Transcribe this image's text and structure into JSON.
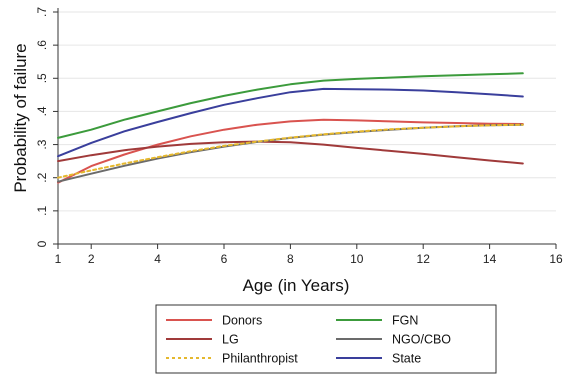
{
  "chart_data": {
    "type": "line",
    "title": "",
    "xlabel": "Age (in Years)",
    "ylabel": "Probability of failure",
    "xlim": [
      1,
      16
    ],
    "ylim": [
      0,
      0.7
    ],
    "xticks": [
      1,
      2,
      4,
      6,
      8,
      10,
      12,
      14,
      16
    ],
    "yticks": [
      0,
      0.1,
      0.2,
      0.3,
      0.4,
      0.5,
      0.6,
      0.7
    ],
    "ytick_labels": [
      "0",
      ".1",
      ".2",
      ".3",
      ".4",
      ".5",
      ".6",
      ".7"
    ],
    "grid": "horizontal",
    "legend_position": "bottom",
    "series": [
      {
        "name": "Donors",
        "color": "#d9534f",
        "dash": "solid",
        "x": [
          1,
          2,
          3,
          4,
          5,
          6,
          7,
          8,
          9,
          10,
          11,
          12,
          13,
          14,
          15
        ],
        "y": [
          0.185,
          0.235,
          0.27,
          0.3,
          0.325,
          0.345,
          0.36,
          0.37,
          0.375,
          0.373,
          0.37,
          0.367,
          0.365,
          0.363,
          0.362
        ]
      },
      {
        "name": "FGN",
        "color": "#3c9b3c",
        "dash": "solid",
        "x": [
          1,
          2,
          3,
          4,
          5,
          6,
          7,
          8,
          9,
          10,
          11,
          12,
          13,
          14,
          15
        ],
        "y": [
          0.32,
          0.345,
          0.375,
          0.4,
          0.425,
          0.447,
          0.466,
          0.482,
          0.493,
          0.498,
          0.502,
          0.506,
          0.509,
          0.512,
          0.515
        ]
      },
      {
        "name": "LG",
        "color": "#a03a3a",
        "dash": "solid",
        "x": [
          1,
          2,
          3,
          4,
          5,
          6,
          7,
          8,
          9,
          10,
          11,
          12,
          13,
          14,
          15
        ],
        "y": [
          0.25,
          0.268,
          0.283,
          0.294,
          0.302,
          0.307,
          0.309,
          0.307,
          0.3,
          0.29,
          0.281,
          0.272,
          0.262,
          0.252,
          0.243
        ]
      },
      {
        "name": "NGO/CBO",
        "color": "#6b6b6b",
        "dash": "solid",
        "x": [
          1,
          2,
          3,
          4,
          5,
          6,
          7,
          8,
          9,
          10,
          11,
          12,
          13,
          14,
          15
        ],
        "y": [
          0.188,
          0.212,
          0.236,
          0.258,
          0.277,
          0.294,
          0.308,
          0.32,
          0.33,
          0.338,
          0.345,
          0.351,
          0.355,
          0.358,
          0.36
        ]
      },
      {
        "name": "Philanthropist",
        "color": "#e5b82e",
        "dash": "dotted",
        "x": [
          1,
          2,
          3,
          4,
          5,
          6,
          7,
          8,
          9,
          10,
          11,
          12,
          13,
          14,
          15
        ],
        "y": [
          0.2,
          0.222,
          0.243,
          0.262,
          0.28,
          0.296,
          0.309,
          0.321,
          0.331,
          0.339,
          0.346,
          0.351,
          0.355,
          0.358,
          0.36
        ]
      },
      {
        "name": "State",
        "color": "#3a3f9c",
        "dash": "solid",
        "x": [
          1,
          2,
          3,
          4,
          5,
          6,
          7,
          8,
          9,
          10,
          11,
          12,
          13,
          14,
          15
        ],
        "y": [
          0.265,
          0.305,
          0.34,
          0.368,
          0.395,
          0.42,
          0.44,
          0.458,
          0.468,
          0.467,
          0.466,
          0.463,
          0.458,
          0.452,
          0.445
        ]
      }
    ],
    "legend_order": [
      "Donors",
      "FGN",
      "LG",
      "NGO/CBO",
      "Philanthropist",
      "State"
    ]
  }
}
